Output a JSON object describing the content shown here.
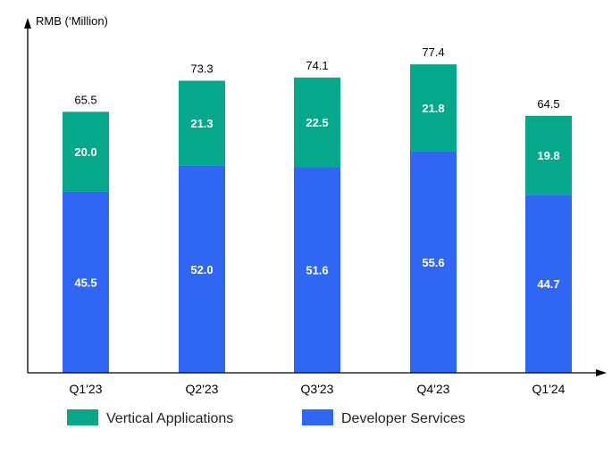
{
  "chart_data": {
    "type": "bar",
    "stacked": true,
    "title": "",
    "ylabel": "RMB (‘Million)",
    "xlabel": "",
    "ylim": [
      0,
      90
    ],
    "grid": false,
    "legend_position": "bottom",
    "categories": [
      "Q1'23",
      "Q2'23",
      "Q3'23",
      "Q4'23",
      "Q1'24"
    ],
    "series": [
      {
        "name": "Developer Services",
        "color": "#2f66f4",
        "values": [
          45.5,
          52.0,
          51.6,
          55.6,
          44.7
        ],
        "labels": [
          "45.5",
          "52.0",
          "51.6",
          "55.6",
          "44.7"
        ]
      },
      {
        "name": "Vertical Applications",
        "color": "#05a88b",
        "values": [
          20.0,
          21.3,
          22.5,
          21.8,
          19.8
        ],
        "labels": [
          "20.0",
          "21.3",
          "22.5",
          "21.8",
          "19.8"
        ]
      }
    ],
    "totals": [
      65.5,
      73.3,
      74.1,
      77.4,
      64.5
    ],
    "total_labels": [
      "65.5",
      "73.3",
      "74.1",
      "77.4",
      "64.5"
    ],
    "legend": [
      {
        "name": "Vertical Applications",
        "color": "#05a88b"
      },
      {
        "name": "Developer Services",
        "color": "#2f66f4"
      }
    ],
    "axis_color": "#000000"
  }
}
